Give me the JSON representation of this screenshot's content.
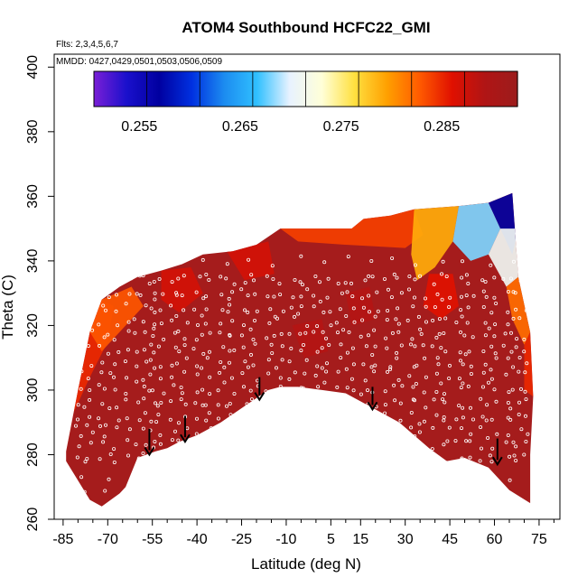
{
  "chart_data": {
    "type": "heatmap",
    "title": "ATOM4 Southbound HCFC22_GMI",
    "subtitle_flights": "Flts: 2,3,4,5,6,7",
    "subtitle_dates": "MMDD: 0427,0429,0501,0503,0506,0509",
    "xlabel": "Latitude (deg N)",
    "ylabel": "Theta (C)",
    "xlim": [
      -88,
      82
    ],
    "ylim": [
      260,
      404
    ],
    "x_ticks": [
      -85,
      -70,
      -55,
      -40,
      -25,
      -10,
      5,
      15,
      30,
      45,
      60,
      75
    ],
    "x_tick_labels": [
      "-85",
      "-70",
      "-55",
      "-40",
      "-25",
      "-10",
      "5",
      "15",
      "30",
      "45",
      "60",
      "75"
    ],
    "y_ticks": [
      260,
      280,
      300,
      320,
      340,
      360,
      380,
      400
    ],
    "y_tick_labels": [
      "260",
      "280",
      "300",
      "320",
      "340",
      "360",
      "380",
      "400"
    ],
    "colorbar": {
      "min": 0.2505,
      "max": 0.2925,
      "ticks": [
        0.255,
        0.265,
        0.275,
        0.285
      ],
      "tick_labels": [
        "0.255",
        "0.265",
        "0.275",
        "0.285"
      ],
      "colors": [
        "#7a1fd6",
        "#1a10cc",
        "#0000a0",
        "#0030e0",
        "#1c8cf0",
        "#30c0ff",
        "#e8f2ff",
        "#ffffd8",
        "#ffe040",
        "#ffa000",
        "#ff5a00",
        "#e01000",
        "#b01515",
        "#9c1c1c"
      ]
    },
    "upper_boundary": [
      [
        -84,
        281
      ],
      [
        -80,
        300
      ],
      [
        -76,
        318
      ],
      [
        -72,
        328
      ],
      [
        -66,
        332
      ],
      [
        -60,
        335
      ],
      [
        -52,
        337
      ],
      [
        -45,
        339
      ],
      [
        -38,
        342
      ],
      [
        -28,
        343
      ],
      [
        -20,
        345
      ],
      [
        -12,
        350
      ],
      [
        5,
        350
      ],
      [
        12,
        350
      ],
      [
        16,
        353
      ],
      [
        25,
        354
      ],
      [
        33,
        356
      ],
      [
        48,
        357
      ],
      [
        58,
        358
      ],
      [
        66,
        361
      ],
      [
        68,
        335
      ],
      [
        72,
        318
      ],
      [
        73,
        298
      ],
      [
        72,
        280
      ],
      [
        72,
        265
      ]
    ],
    "lower_boundary": [
      [
        72,
        265
      ],
      [
        65,
        269
      ],
      [
        58,
        276
      ],
      [
        50,
        279
      ],
      [
        44,
        278
      ],
      [
        38,
        282
      ],
      [
        28,
        290
      ],
      [
        20,
        294
      ],
      [
        10,
        299
      ],
      [
        2,
        300
      ],
      [
        -6,
        301
      ],
      [
        -12,
        301
      ],
      [
        -16,
        300
      ],
      [
        -24,
        295
      ],
      [
        -32,
        290
      ],
      [
        -40,
        286
      ],
      [
        -46,
        284
      ],
      [
        -50,
        282
      ],
      [
        -54,
        281
      ],
      [
        -60,
        279
      ],
      [
        -64,
        270
      ],
      [
        -66,
        268
      ],
      [
        -72,
        264
      ],
      [
        -76,
        266
      ],
      [
        -80,
        272
      ],
      [
        -84,
        278
      ]
    ],
    "value_regions": [
      {
        "polygon": [
          [
            -84,
            281
          ],
          [
            -80,
            300
          ],
          [
            -76,
            318
          ],
          [
            -72,
            328
          ],
          [
            -68,
            326
          ],
          [
            -70,
            315
          ],
          [
            -76,
            304
          ],
          [
            -82,
            292
          ]
        ],
        "value": 0.285
      },
      {
        "polygon": [
          [
            -76,
            318
          ],
          [
            -72,
            328
          ],
          [
            -62,
            332
          ],
          [
            -58,
            326
          ],
          [
            -66,
            318
          ],
          [
            -72,
            312
          ]
        ],
        "value": 0.283
      },
      {
        "polygon": [
          [
            -52,
            337
          ],
          [
            -42,
            338
          ],
          [
            -38,
            330
          ],
          [
            -46,
            324
          ],
          [
            -52,
            328
          ]
        ],
        "value": 0.287
      },
      {
        "polygon": [
          [
            -30,
            343
          ],
          [
            -16,
            346
          ],
          [
            -14,
            336
          ],
          [
            -24,
            334
          ]
        ],
        "value": 0.287
      },
      {
        "polygon": [
          [
            -12,
            350
          ],
          [
            16,
            353
          ],
          [
            33,
            356
          ],
          [
            36,
            348
          ],
          [
            30,
            344
          ],
          [
            10,
            345
          ],
          [
            -6,
            346
          ]
        ],
        "value": 0.284
      },
      {
        "polygon": [
          [
            33,
            356
          ],
          [
            48,
            357
          ],
          [
            46,
            346
          ],
          [
            40,
            338
          ],
          [
            34,
            334
          ],
          [
            32,
            342
          ]
        ],
        "value": 0.279
      },
      {
        "polygon": [
          [
            48,
            357
          ],
          [
            58,
            358
          ],
          [
            62,
            350
          ],
          [
            58,
            342
          ],
          [
            52,
            340
          ],
          [
            46,
            346
          ]
        ],
        "value": 0.268
      },
      {
        "polygon": [
          [
            58,
            358
          ],
          [
            66,
            361
          ],
          [
            68,
            350
          ],
          [
            66,
            342
          ],
          [
            62,
            350
          ]
        ],
        "value": 0.257
      },
      {
        "polygon": [
          [
            62,
            350
          ],
          [
            68,
            350
          ],
          [
            68,
            335
          ],
          [
            64,
            332
          ],
          [
            58,
            342
          ]
        ],
        "value": 0.271
      },
      {
        "polygon": [
          [
            64,
            332
          ],
          [
            68,
            335
          ],
          [
            72,
            318
          ],
          [
            70,
            314
          ],
          [
            66,
            322
          ]
        ],
        "value": 0.282
      },
      {
        "polygon": [
          [
            70,
            314
          ],
          [
            72,
            318
          ],
          [
            73,
            298
          ],
          [
            70,
            300
          ]
        ],
        "value": 0.285
      },
      {
        "polygon": [
          [
            38,
            336
          ],
          [
            46,
            336
          ],
          [
            48,
            326
          ],
          [
            42,
            322
          ],
          [
            36,
            326
          ]
        ],
        "value": 0.286
      },
      {
        "polygon": [
          [
            -8,
            320
          ],
          [
            2,
            322
          ],
          [
            4,
            312
          ],
          [
            -4,
            310
          ]
        ],
        "value": 0.289
      },
      {
        "polygon": [
          [
            10,
            330
          ],
          [
            18,
            332
          ],
          [
            20,
            322
          ],
          [
            12,
            320
          ]
        ],
        "value": 0.289
      }
    ],
    "arrows": [
      {
        "x": -56,
        "y_top": 288,
        "y_bottom": 280
      },
      {
        "x": -44,
        "y_top": 292,
        "y_bottom": 284
      },
      {
        "x": -19,
        "y_top": 304,
        "y_bottom": 297
      },
      {
        "x": 19,
        "y_top": 301,
        "y_bottom": 294
      },
      {
        "x": 61,
        "y_top": 285,
        "y_bottom": 277
      }
    ],
    "flight_tracks": [
      {
        "lats": [
          -86,
          -80,
          -76,
          -72,
          -67,
          -63,
          -58,
          -55,
          -52,
          -48,
          -44,
          -40,
          -36,
          -32,
          -28,
          -24,
          -20,
          -16,
          -12,
          -8,
          -4,
          0,
          4,
          8,
          12,
          16,
          20,
          24,
          28,
          32,
          36,
          40,
          44,
          48,
          52,
          56,
          60,
          64,
          68,
          71
        ],
        "theta_lo": 279,
        "theta_hi": 334
      },
      {
        "lats": [
          -78,
          -70,
          -60,
          -54,
          -46,
          -38,
          -30,
          -22,
          -14,
          -6,
          2,
          10,
          18,
          26,
          34,
          42,
          50,
          58,
          66
        ],
        "theta_lo": 268,
        "theta_hi": 340
      }
    ]
  }
}
